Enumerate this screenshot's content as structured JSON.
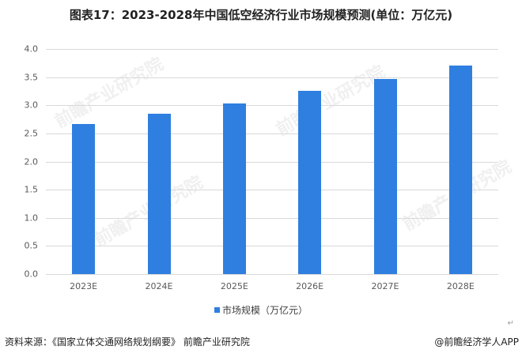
{
  "title": "图表17：2023-2028年中国低空经济行业市场规模预测(单位：万亿元)",
  "chart_data": {
    "type": "bar",
    "title": "图表17：2023-2028年中国低空经济行业市场规模预测(单位：万亿元)",
    "categories": [
      "2023E",
      "2024E",
      "2025E",
      "2026E",
      "2027E",
      "2028E"
    ],
    "series": [
      {
        "name": "市场规模（万亿元）",
        "values": [
          2.67,
          2.85,
          3.03,
          3.26,
          3.47,
          3.71
        ],
        "color": "#2f7fe0"
      }
    ],
    "xlabel": "",
    "ylabel": "",
    "ylim": [
      0,
      4.0
    ],
    "yticks": [
      "0.0",
      "0.5",
      "1.0",
      "1.5",
      "2.0",
      "2.5",
      "3.0",
      "3.5",
      "4.0"
    ],
    "grid": true,
    "legend_position": "bottom"
  },
  "legend": {
    "label": "市场规模（万亿元）"
  },
  "footer": {
    "source": "资料来源：《国家立体交通网络规划纲要》 前瞻产业研究院",
    "credit": "@前瞻经济学人APP",
    "return_mark": "↵"
  },
  "watermark": "前瞻产业研究院"
}
